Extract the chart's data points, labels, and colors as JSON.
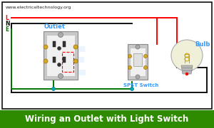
{
  "title": "Wiring an Outlet with Light Switch",
  "title_bg": "#2e8b00",
  "title_color": "white",
  "title_fontsize": 8.5,
  "website": "www.electricaltechnology.org",
  "website_color": "#222222",
  "website_fontsize": 4.5,
  "background_color": "#ffffff",
  "border_color": "#111111",
  "outlet_label": "Outlet",
  "outlet_label_color": "#3399ff",
  "switch_label": "SPST Switch",
  "switch_label_color": "#3399ff",
  "bulb_label": "Bulb",
  "bulb_label_color": "#3399ff",
  "wire_red": "#ff0000",
  "wire_black": "#111111",
  "wire_green": "#007700",
  "wire_lw": 1.4
}
